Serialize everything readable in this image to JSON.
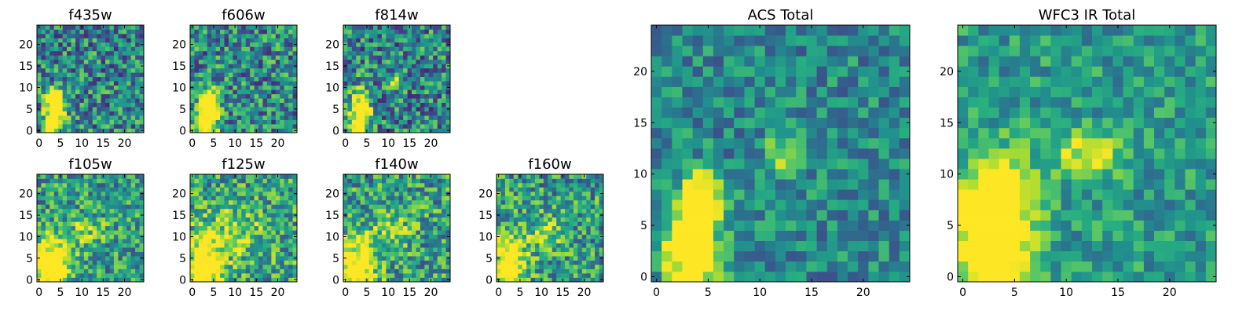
{
  "chart_data": [
    {
      "type": "heatmap",
      "title": "f435w",
      "xticks": [
        "0",
        "5",
        "10",
        "15",
        "20"
      ],
      "yticks": [
        "0",
        "5",
        "10",
        "15",
        "20"
      ],
      "grid_size": [
        25,
        25
      ],
      "colormap": "viridis",
      "blobs": [
        {
          "cx": 3.5,
          "cy": 3,
          "sx": 1.6,
          "sy": 3.2,
          "amp": 1.0
        },
        {
          "cx": 4,
          "cy": 8,
          "sx": 1.4,
          "sy": 1.4,
          "amp": 0.7
        }
      ],
      "noise": 0.34,
      "base": 0.46
    },
    {
      "type": "heatmap",
      "title": "f606w",
      "xticks": [
        "0",
        "5",
        "10",
        "15",
        "20"
      ],
      "yticks": [
        "0",
        "5",
        "10",
        "15",
        "20"
      ],
      "grid_size": [
        25,
        25
      ],
      "colormap": "viridis",
      "blobs": [
        {
          "cx": 3.5,
          "cy": 3,
          "sx": 1.7,
          "sy": 3.0,
          "amp": 1.0
        },
        {
          "cx": 4,
          "cy": 7.5,
          "sx": 1.5,
          "sy": 1.5,
          "amp": 0.8
        }
      ],
      "noise": 0.34,
      "base": 0.47
    },
    {
      "type": "heatmap",
      "title": "f814w",
      "xticks": [
        "0",
        "5",
        "10",
        "15",
        "20"
      ],
      "yticks": [
        "0",
        "5",
        "10",
        "15",
        "20"
      ],
      "grid_size": [
        25,
        25
      ],
      "colormap": "viridis",
      "blobs": [
        {
          "cx": 3.5,
          "cy": 4,
          "sx": 1.6,
          "sy": 3.6,
          "amp": 1.0
        },
        {
          "cx": 11,
          "cy": 11.5,
          "sx": 1.1,
          "sy": 1.2,
          "amp": 0.5
        }
      ],
      "noise": 0.34,
      "base": 0.45
    },
    {
      "type": "heatmap",
      "title": "f105w",
      "xticks": [
        "0",
        "5",
        "10",
        "15",
        "20"
      ],
      "yticks": [
        "0",
        "5",
        "10",
        "15",
        "20"
      ],
      "grid_size": [
        25,
        25
      ],
      "colormap": "viridis",
      "blobs": [
        {
          "cx": 3,
          "cy": 3,
          "sx": 2.6,
          "sy": 4.5,
          "amp": 0.9
        },
        {
          "cx": 11,
          "cy": 11,
          "sx": 3,
          "sy": 3,
          "amp": 0.25
        }
      ],
      "noise": 0.3,
      "base": 0.55
    },
    {
      "type": "heatmap",
      "title": "f125w",
      "xticks": [
        "0",
        "5",
        "10",
        "15",
        "20"
      ],
      "yticks": [
        "0",
        "5",
        "10",
        "15",
        "20"
      ],
      "grid_size": [
        25,
        25
      ],
      "colormap": "viridis",
      "blobs": [
        {
          "cx": 3,
          "cy": 3,
          "sx": 3,
          "sy": 5,
          "amp": 0.75
        },
        {
          "cx": 11,
          "cy": 11,
          "sx": 4,
          "sy": 4,
          "amp": 0.25
        }
      ],
      "noise": 0.32,
      "base": 0.58
    },
    {
      "type": "heatmap",
      "title": "f140w",
      "xticks": [
        "0",
        "5",
        "10",
        "15",
        "20"
      ],
      "yticks": [
        "0",
        "5",
        "10",
        "15",
        "20"
      ],
      "grid_size": [
        25,
        25
      ],
      "colormap": "viridis",
      "blobs": [
        {
          "cx": 3,
          "cy": 3,
          "sx": 3,
          "sy": 5,
          "amp": 0.7
        },
        {
          "cx": 11,
          "cy": 12,
          "sx": 3,
          "sy": 3,
          "amp": 0.25
        }
      ],
      "noise": 0.32,
      "base": 0.56
    },
    {
      "type": "heatmap",
      "title": "f160w",
      "xticks": [
        "0",
        "5",
        "10",
        "15",
        "20"
      ],
      "yticks": [
        "0",
        "5",
        "10",
        "15",
        "20"
      ],
      "grid_size": [
        25,
        25
      ],
      "colormap": "viridis",
      "blobs": [
        {
          "cx": 2.5,
          "cy": 3.5,
          "sx": 2.5,
          "sy": 5,
          "amp": 0.8
        },
        {
          "cx": 11,
          "cy": 11,
          "sx": 3,
          "sy": 3,
          "amp": 0.25
        }
      ],
      "noise": 0.32,
      "base": 0.55
    },
    {
      "type": "heatmap",
      "title": "ACS Total",
      "xticks": [
        "0",
        "5",
        "10",
        "15",
        "20"
      ],
      "yticks": [
        "0",
        "5",
        "10",
        "15",
        "20"
      ],
      "grid_size": [
        25,
        25
      ],
      "colormap": "viridis",
      "blobs": [
        {
          "cx": 3.5,
          "cy": 2.5,
          "sx": 1.8,
          "sy": 2.8,
          "amp": 1.0
        },
        {
          "cx": 4.5,
          "cy": 8,
          "sx": 1.4,
          "sy": 1.5,
          "amp": 0.8
        },
        {
          "cx": 12,
          "cy": 11.5,
          "sx": 1.1,
          "sy": 1.3,
          "amp": 0.45
        }
      ],
      "noise": 0.22,
      "base": 0.47
    },
    {
      "type": "heatmap",
      "title": "WFC3 IR Total",
      "xticks": [
        "0",
        "5",
        "10",
        "15",
        "20"
      ],
      "yticks": [
        "0",
        "5",
        "10",
        "15",
        "20"
      ],
      "grid_size": [
        25,
        25
      ],
      "colormap": "viridis",
      "blobs": [
        {
          "cx": 3,
          "cy": 3,
          "sx": 2.6,
          "sy": 4.6,
          "amp": 0.85
        },
        {
          "cx": 3.5,
          "cy": 8.5,
          "sx": 2.2,
          "sy": 2.5,
          "amp": 0.4
        },
        {
          "cx": 12,
          "cy": 12,
          "sx": 2.2,
          "sy": 1.6,
          "amp": 0.4
        }
      ],
      "noise": 0.2,
      "base": 0.55
    }
  ]
}
